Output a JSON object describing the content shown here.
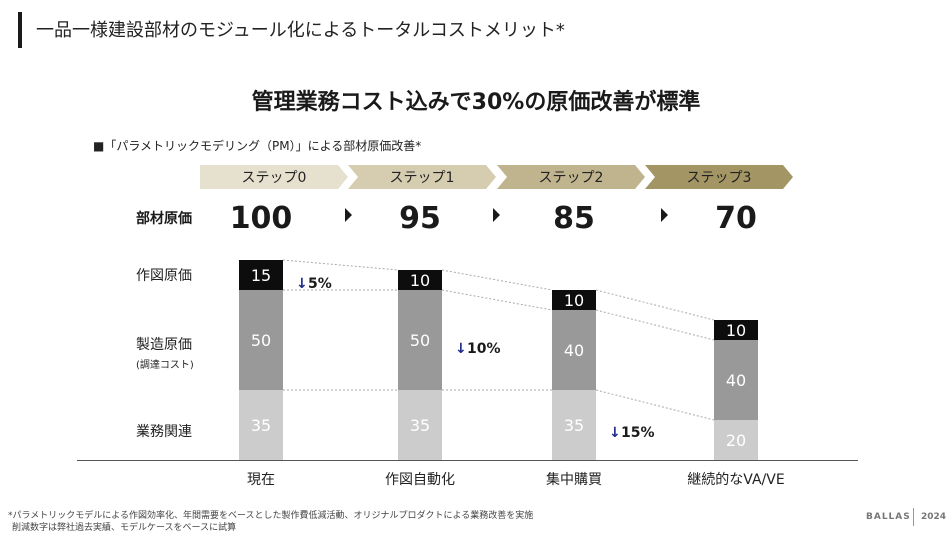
{
  "page": {
    "title": "一品一様建設部材のモジュール化によるトータルコストメリット*",
    "headline": "管理業務コスト込みで30%の原価改善が標準",
    "subhead": "■「パラメトリックモデリング（PM）」による部材原価改善*",
    "footnote_line1": "*パラメトリックモデルによる作図効率化、年間需要をベースとした製作費低減活動、オリジナルプロダクトによる業務改善を実施",
    "footnote_line2": "削減数字は弊社過去実績、モデルケースをベースに試算",
    "brand": "BALLAS",
    "year": "2024"
  },
  "colors": {
    "step0": "#e6e0cf",
    "step1": "#d6cdb0",
    "step2": "#bfb48e",
    "step3": "#a39564",
    "drawing": "#0d0d0d",
    "manufacturing": "#999999",
    "business": "#cccccc",
    "arrow": "#1a2a8a"
  },
  "chart_data": {
    "type": "bar",
    "stacked": true,
    "categories": [
      "現在",
      "作図自動化",
      "集中購買",
      "継続的なVA/VE"
    ],
    "steps": [
      "ステップ0",
      "ステップ1",
      "ステップ2",
      "ステップ3"
    ],
    "totals_label": "部材原価",
    "totals": [
      100,
      95,
      85,
      70
    ],
    "series": [
      {
        "name": "業務関連",
        "values": [
          35,
          35,
          35,
          20
        ]
      },
      {
        "name": "製造原価",
        "sublabel": "(調達コスト)",
        "values": [
          50,
          50,
          40,
          40
        ]
      },
      {
        "name": "作図原価",
        "values": [
          15,
          10,
          10,
          10
        ]
      }
    ],
    "reductions": [
      {
        "label": "5%",
        "series": "作図原価",
        "after_category": 0
      },
      {
        "label": "10%",
        "series": "製造原価",
        "after_category": 1
      },
      {
        "label": "15%",
        "series": "業務関連",
        "after_category": 2
      }
    ],
    "ylim": [
      0,
      100
    ]
  }
}
